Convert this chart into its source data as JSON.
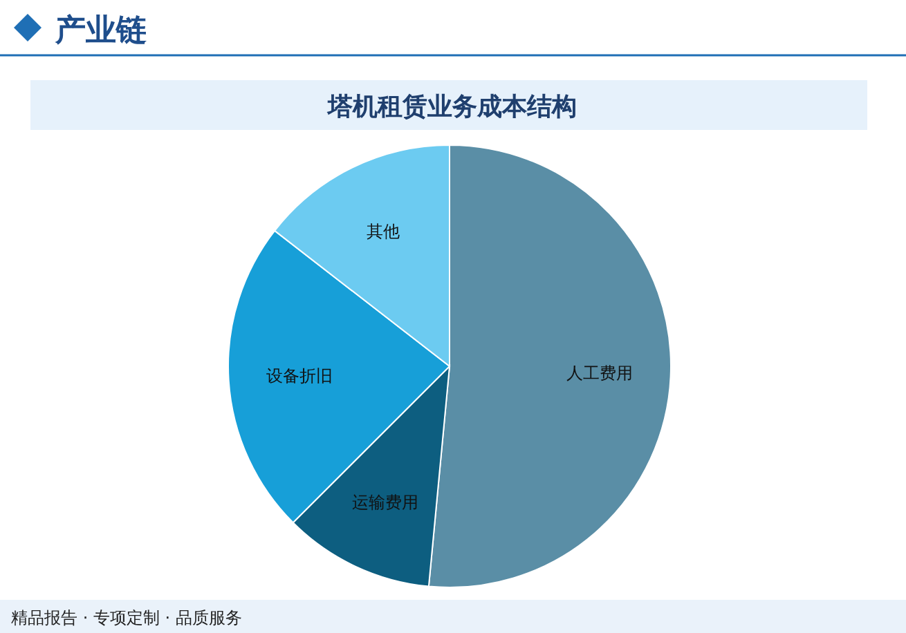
{
  "chart_data": {
    "type": "pie",
    "title": "塔机租赁业务成本结构",
    "categories": [
      "人工费用",
      "运输费用",
      "设备折旧",
      "其他"
    ],
    "values": [
      51.5,
      11,
      23,
      14.5
    ],
    "colors": [
      "#5a8ea6",
      "#0d5e80",
      "#179fd8",
      "#6ccbf1"
    ],
    "annotations": [
      "产业链",
      "精品报告 · 专项定制 · 品质服务"
    ]
  }
}
